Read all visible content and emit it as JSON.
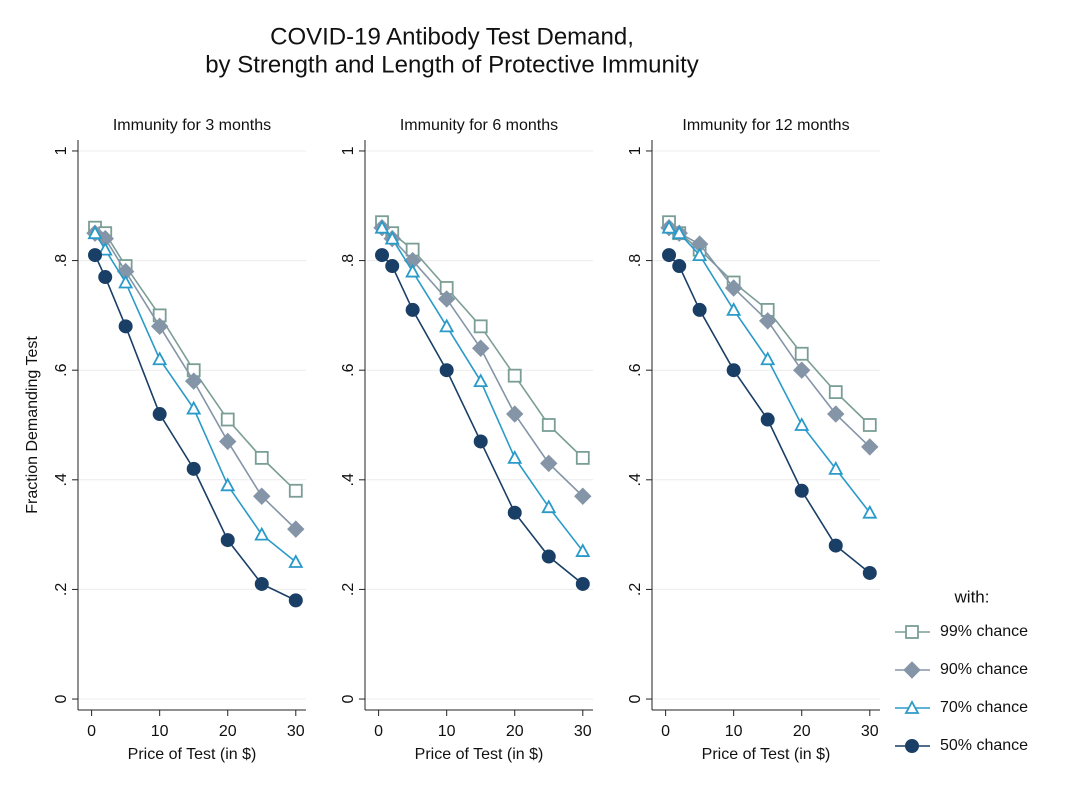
{
  "title": [
    "COVID-19 Antibody Test Demand,",
    "by Strength and Length of Protective Immunity"
  ],
  "legend_title": "with:",
  "chart_data": [
    {
      "type": "line",
      "title": "Immunity for 3 months",
      "xlabel": "Price of Test (in $)",
      "ylabel": "Fraction Demanding Test",
      "x": [
        0.5,
        2,
        5,
        10,
        15,
        20,
        25,
        30
      ],
      "xlim": [
        -2,
        31.5
      ],
      "xticks": [
        0,
        10,
        20,
        30
      ],
      "ylim": [
        -0.02,
        1.02
      ],
      "yticks": [
        0,
        {
          "value": 0.2,
          "label": ".2"
        },
        {
          "value": 0.4,
          "label": ".4"
        },
        {
          "value": 0.6,
          "label": ".6"
        },
        {
          "value": 0.8,
          "label": ".8"
        },
        1
      ],
      "grid": true,
      "series": [
        {
          "name": "99% chance",
          "color": "#7a9e95",
          "marker": "square-open",
          "values": [
            0.86,
            0.85,
            0.79,
            0.7,
            0.6,
            0.51,
            0.44,
            0.38
          ]
        },
        {
          "name": "90% chance",
          "color": "#8595a8",
          "marker": "diamond",
          "values": [
            0.85,
            0.84,
            0.78,
            0.68,
            0.58,
            0.47,
            0.37,
            0.31
          ]
        },
        {
          "name": "70% chance",
          "color": "#2a9ac9",
          "marker": "triangle-open",
          "values": [
            0.85,
            0.82,
            0.76,
            0.62,
            0.53,
            0.39,
            0.3,
            0.25
          ]
        },
        {
          "name": "50% chance",
          "color": "#1a3f66",
          "marker": "circle",
          "values": [
            0.81,
            0.77,
            0.68,
            0.52,
            0.42,
            0.29,
            0.21,
            0.18
          ]
        }
      ]
    },
    {
      "type": "line",
      "title": "Immunity for 6 months",
      "xlabel": "Price of Test (in $)",
      "x": [
        0.5,
        2,
        5,
        10,
        15,
        20,
        25,
        30
      ],
      "xlim": [
        -2,
        31.5
      ],
      "xticks": [
        0,
        10,
        20,
        30
      ],
      "ylim": [
        -0.02,
        1.02
      ],
      "yticks": [
        0,
        {
          "value": 0.2,
          "label": ".2"
        },
        {
          "value": 0.4,
          "label": ".4"
        },
        {
          "value": 0.6,
          "label": ".6"
        },
        {
          "value": 0.8,
          "label": ".8"
        },
        1
      ],
      "grid": true,
      "series": [
        {
          "name": "99% chance",
          "color": "#7a9e95",
          "marker": "square-open",
          "values": [
            0.87,
            0.85,
            0.82,
            0.75,
            0.68,
            0.59,
            0.5,
            0.44
          ]
        },
        {
          "name": "90% chance",
          "color": "#8595a8",
          "marker": "diamond",
          "values": [
            0.86,
            0.84,
            0.8,
            0.73,
            0.64,
            0.52,
            0.43,
            0.37
          ]
        },
        {
          "name": "70% chance",
          "color": "#2a9ac9",
          "marker": "triangle-open",
          "values": [
            0.86,
            0.84,
            0.78,
            0.68,
            0.58,
            0.44,
            0.35,
            0.27
          ]
        },
        {
          "name": "50% chance",
          "color": "#1a3f66",
          "marker": "circle",
          "values": [
            0.81,
            0.79,
            0.71,
            0.6,
            0.47,
            0.34,
            0.26,
            0.21
          ]
        }
      ]
    },
    {
      "type": "line",
      "title": "Immunity for 12 months",
      "xlabel": "Price of Test (in $)",
      "x": [
        0.5,
        2,
        5,
        10,
        15,
        20,
        25,
        30
      ],
      "xlim": [
        -2,
        31.5
      ],
      "xticks": [
        0,
        10,
        20,
        30
      ],
      "ylim": [
        -0.02,
        1.02
      ],
      "yticks": [
        0,
        {
          "value": 0.2,
          "label": ".2"
        },
        {
          "value": 0.4,
          "label": ".4"
        },
        {
          "value": 0.6,
          "label": ".6"
        },
        {
          "value": 0.8,
          "label": ".8"
        },
        1
      ],
      "grid": true,
      "series": [
        {
          "name": "99% chance",
          "color": "#7a9e95",
          "marker": "square-open",
          "values": [
            0.87,
            0.85,
            0.82,
            0.76,
            0.71,
            0.63,
            0.56,
            0.5
          ]
        },
        {
          "name": "90% chance",
          "color": "#8595a8",
          "marker": "diamond",
          "values": [
            0.86,
            0.85,
            0.83,
            0.75,
            0.69,
            0.6,
            0.52,
            0.46
          ]
        },
        {
          "name": "70% chance",
          "color": "#2a9ac9",
          "marker": "triangle-open",
          "values": [
            0.86,
            0.85,
            0.81,
            0.71,
            0.62,
            0.5,
            0.42,
            0.34
          ]
        },
        {
          "name": "50% chance",
          "color": "#1a3f66",
          "marker": "circle",
          "values": [
            0.81,
            0.79,
            0.71,
            0.6,
            0.51,
            0.38,
            0.28,
            0.23
          ]
        }
      ]
    }
  ]
}
